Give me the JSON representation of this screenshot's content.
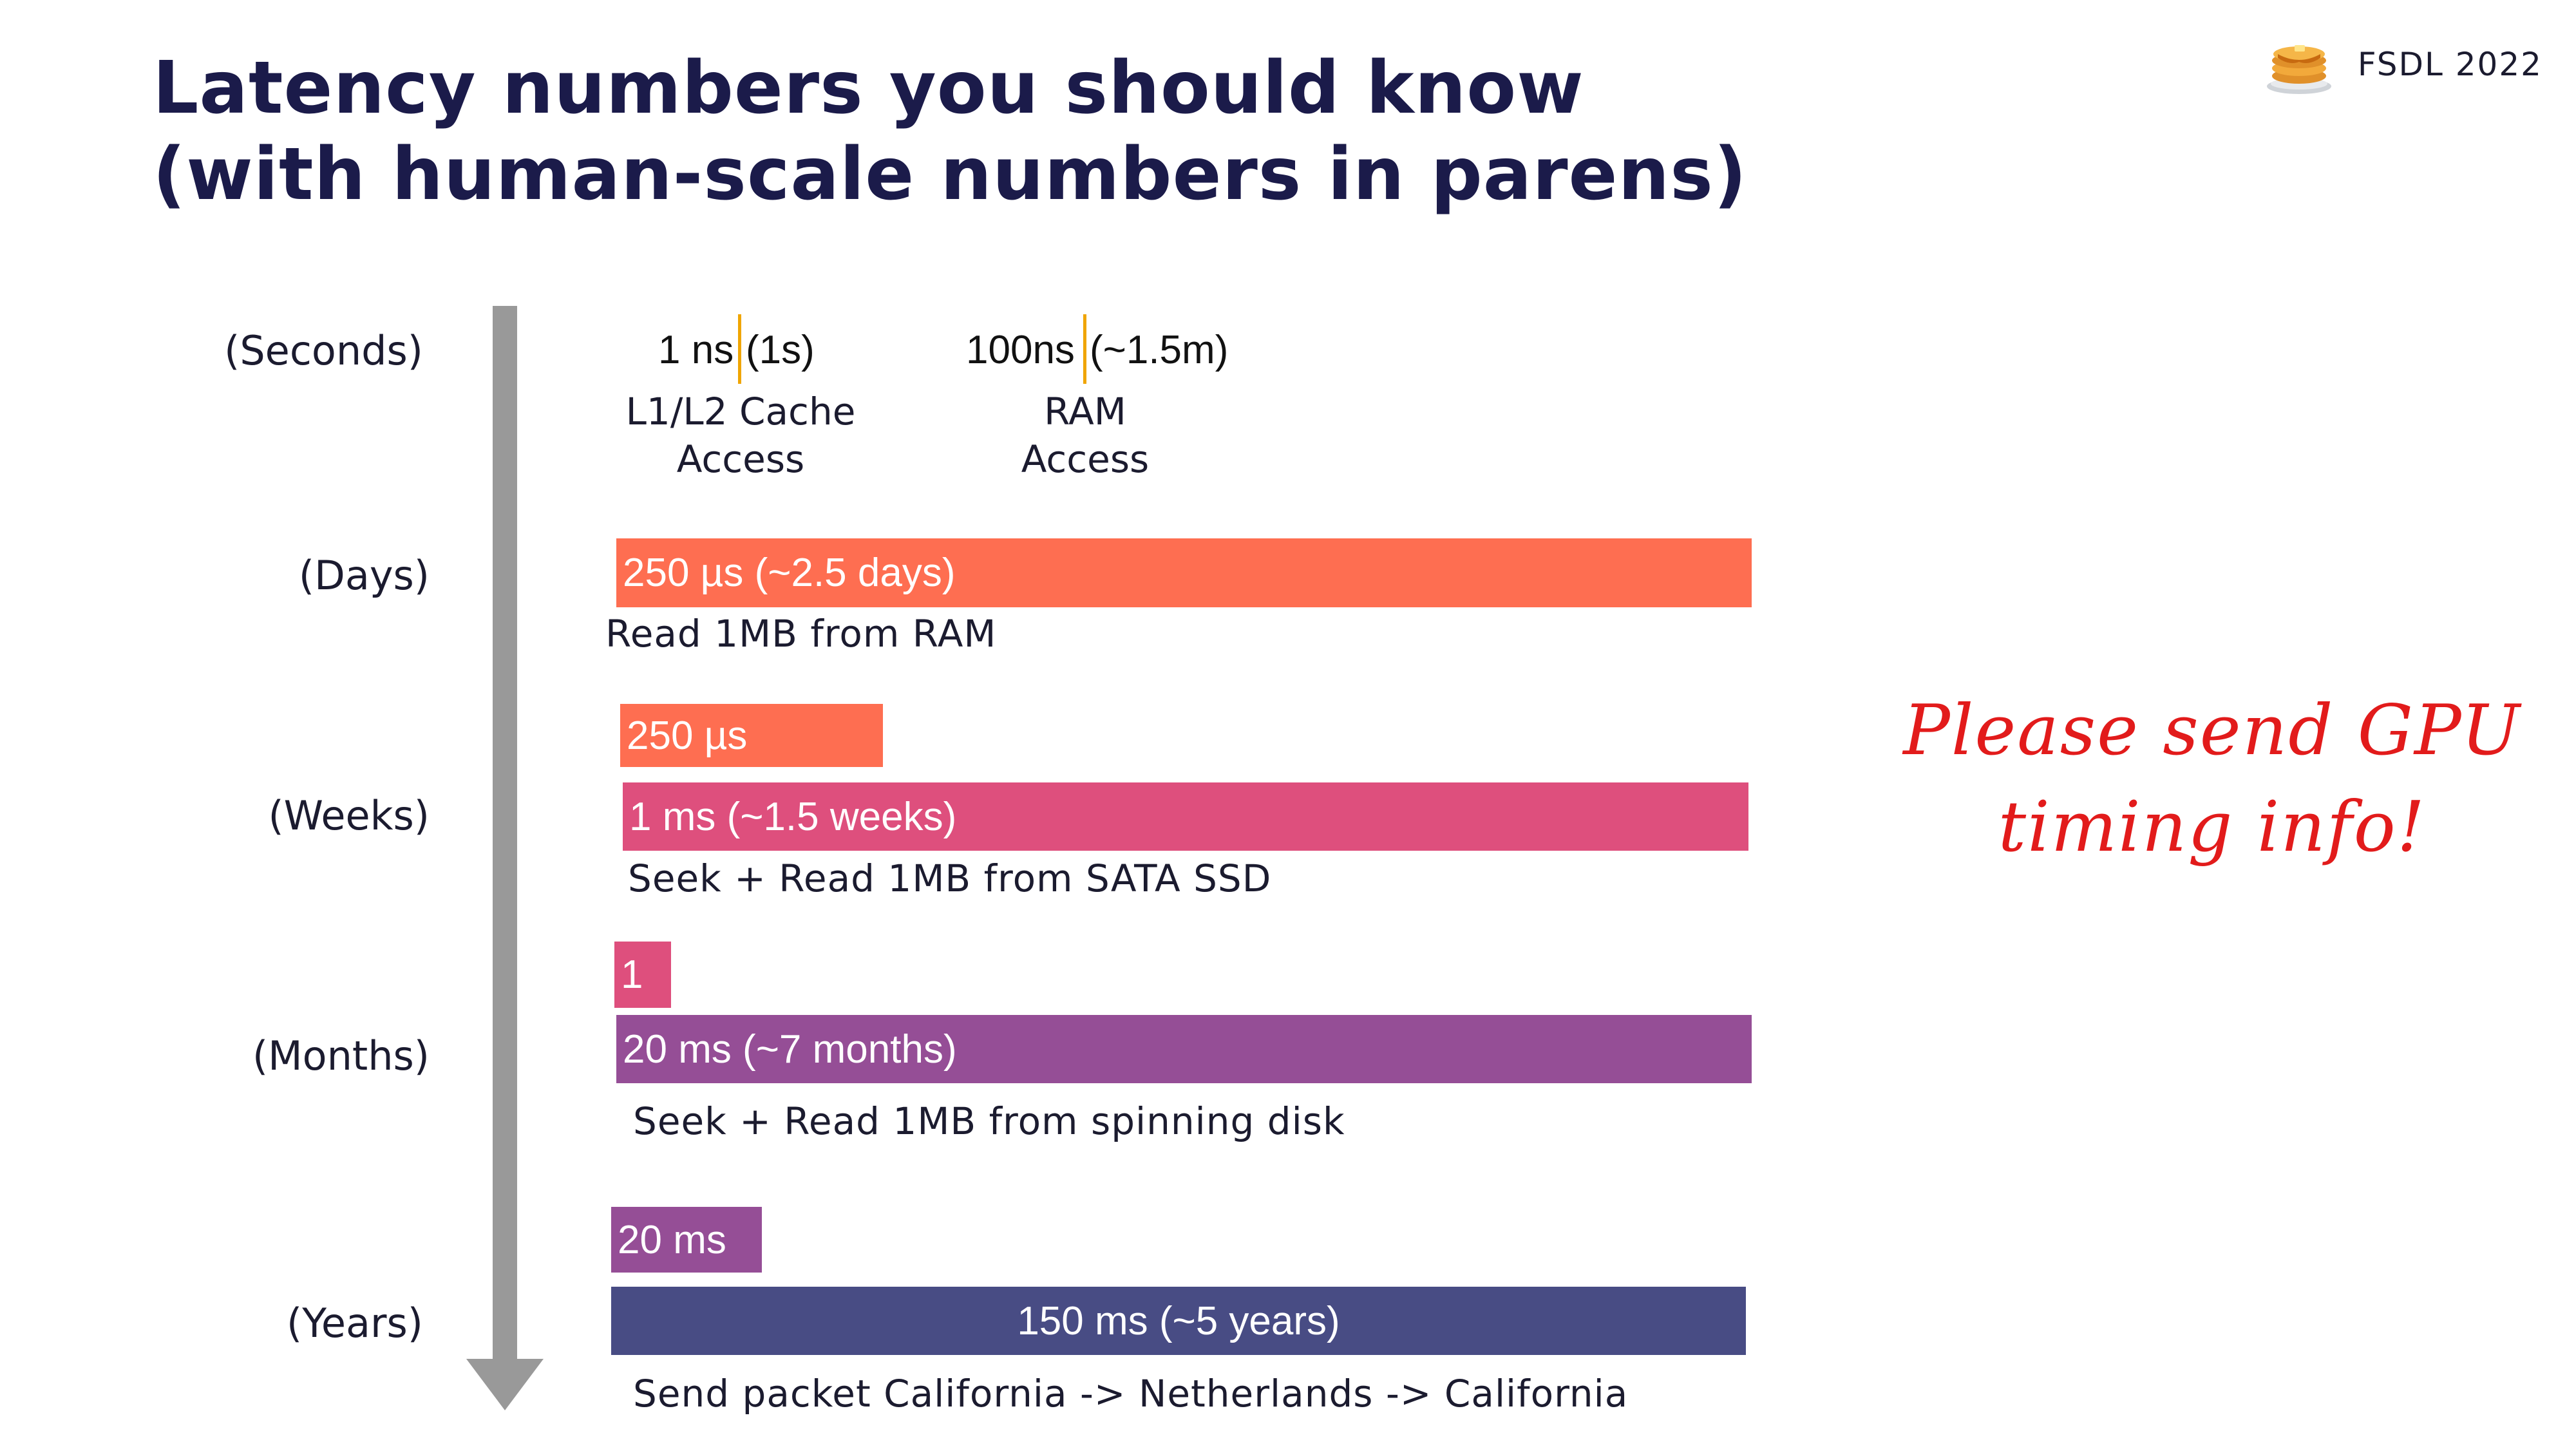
{
  "slide": {
    "title_line1": "Latency numbers you should know",
    "title_line2": "(with human-scale numbers in parens)",
    "brand": "FSDL 2022",
    "brand_icon": "pancake-stack-icon",
    "note": "Please send GPU timing info!"
  },
  "colors": {
    "title": "#1b1b4a",
    "tick": "#f0a500",
    "ram_bar": "#fe6e51",
    "ssd_bar": "#de4f7d",
    "disk_bar": "#954e96",
    "network_bar": "#484c84",
    "arrow": "#999999",
    "note": "#e21b1b"
  },
  "scale_labels": [
    "(Seconds)",
    "(Days)",
    "(Weeks)",
    "(Months)",
    "(Years)"
  ],
  "top_items": [
    {
      "latency": "1 ns",
      "human": "(1s)",
      "operation_line1": "L1/L2 Cache",
      "operation_line2": "Access"
    },
    {
      "latency": "100ns",
      "human": "(~1.5m)",
      "operation_line1": "RAM",
      "operation_line2": "Access"
    }
  ],
  "bars": {
    "ram": {
      "label": "250 µs (~2.5 days)",
      "caption": "Read 1MB from RAM"
    },
    "ram_ref": {
      "label": "250 µs"
    },
    "ssd": {
      "label": "1 ms (~1.5 weeks)",
      "caption": "Seek + Read 1MB from SATA SSD"
    },
    "ssd_ref": {
      "label": "1"
    },
    "disk": {
      "label": "20 ms (~7 months)",
      "caption": "Seek + Read 1MB from spinning disk"
    },
    "disk_ref": {
      "label": "20 ms"
    },
    "network": {
      "label": "150 ms (~5 years)",
      "caption": "Send packet California -> Netherlands -> California"
    }
  }
}
